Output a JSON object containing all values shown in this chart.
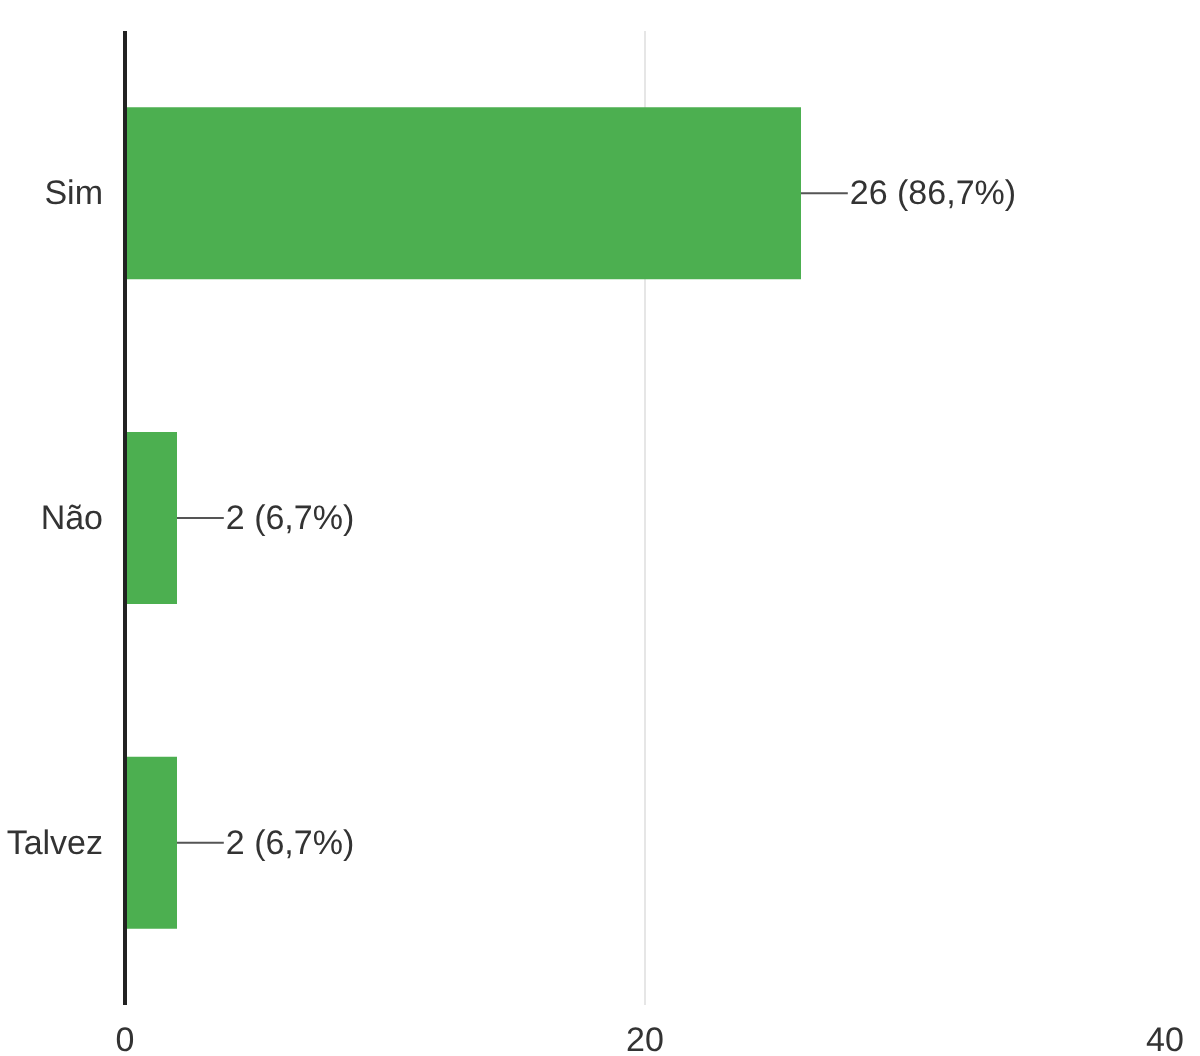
{
  "chart_data": {
    "type": "bar",
    "orientation": "horizontal",
    "categories": [
      "Sim",
      "Não",
      "Talvez"
    ],
    "values": [
      26,
      2,
      2
    ],
    "color": "#4caf50",
    "value_labels": [
      "26 (86,7%)",
      "2 (6,7%)",
      "2 (6,7%)"
    ],
    "xlim": [
      0,
      40
    ],
    "xticks": [
      0,
      20,
      40
    ],
    "grid": "x"
  }
}
